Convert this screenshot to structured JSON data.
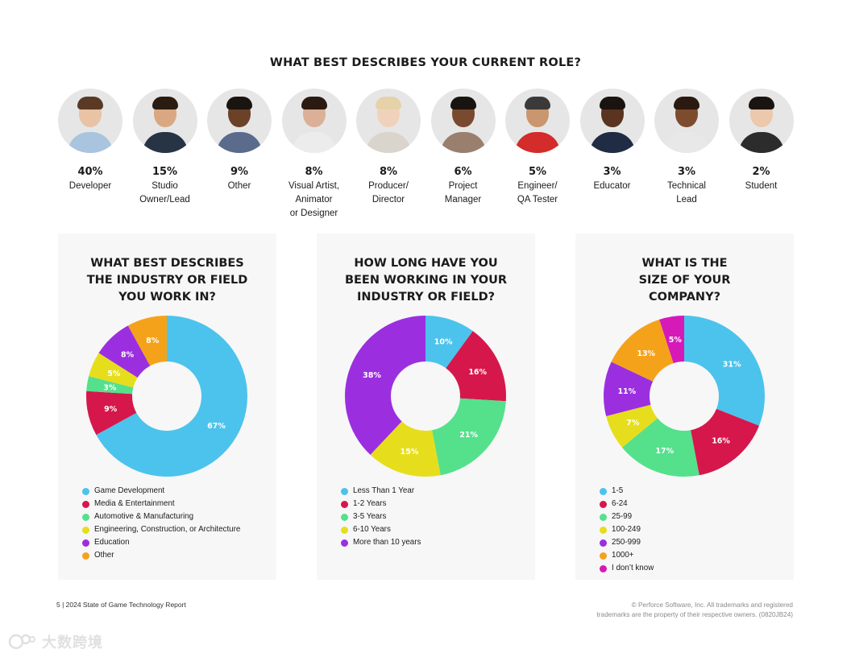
{
  "colors": {
    "blue": "#4cc3ec",
    "red": "#d6174b",
    "green": "#55e08c",
    "yellow": "#e6de1c",
    "purple": "#9b2fe0",
    "orange": "#f5a21b",
    "magenta": "#d51ab8"
  },
  "roles": {
    "title": "WHAT BEST DESCRIBES YOUR CURRENT ROLE?",
    "items": [
      {
        "percent": "40%",
        "label": "Developer"
      },
      {
        "percent": "15%",
        "label": "Studio\nOwner/Lead"
      },
      {
        "percent": "9%",
        "label": "Other"
      },
      {
        "percent": "8%",
        "label": "Visual Artist,\nAnimator\nor Designer"
      },
      {
        "percent": "8%",
        "label": "Producer/\nDirector"
      },
      {
        "percent": "6%",
        "label": "Project\nManager"
      },
      {
        "percent": "5%",
        "label": "Engineer/\nQA Tester"
      },
      {
        "percent": "3%",
        "label": "Educator"
      },
      {
        "percent": "3%",
        "label": "Technical\nLead"
      },
      {
        "percent": "2%",
        "label": "Student"
      }
    ]
  },
  "chart_data": [
    {
      "type": "pie",
      "title": "WHAT BEST DESCRIBES\nTHE INDUSTRY OR FIELD\nYOU WORK IN?",
      "categories": [
        "Game Development",
        "Media & Entertainment",
        "Automotive & Manufacturing",
        "Engineering, Construction, or Architecture",
        "Education",
        "Other"
      ],
      "values": [
        67,
        9,
        3,
        5,
        8,
        8
      ],
      "labels": [
        "67%",
        "9%",
        "3%",
        "5%",
        "8%",
        "8%"
      ],
      "colors": [
        "#4cc3ec",
        "#d6174b",
        "#55e08c",
        "#e6de1c",
        "#9b2fe0",
        "#f5a21b"
      ]
    },
    {
      "type": "pie",
      "title": "HOW LONG HAVE YOU\nBEEN WORKING IN YOUR\nINDUSTRY OR FIELD?",
      "categories": [
        "Less Than 1 Year",
        "1-2 Years",
        "3-5 Years",
        "6-10 Years",
        "More than 10 years"
      ],
      "values": [
        10,
        16,
        21,
        15,
        38
      ],
      "labels": [
        "10%",
        "16%",
        "21%",
        "15%",
        "38%"
      ],
      "colors": [
        "#4cc3ec",
        "#d6174b",
        "#55e08c",
        "#e6de1c",
        "#9b2fe0"
      ]
    },
    {
      "type": "pie",
      "title": "WHAT IS THE\nSIZE OF YOUR\nCOMPANY?",
      "categories": [
        "1-5",
        "6-24",
        "25-99",
        "100-249",
        "250-999",
        "1000+",
        "I don’t know"
      ],
      "values": [
        31,
        16,
        17,
        7,
        11,
        13,
        5
      ],
      "labels": [
        "31%",
        "16%",
        "17%",
        "7%",
        "11%",
        "13%",
        "5%"
      ],
      "colors": [
        "#4cc3ec",
        "#d6174b",
        "#55e08c",
        "#e6de1c",
        "#9b2fe0",
        "#f5a21b",
        "#d51ab8"
      ]
    }
  ],
  "footer": {
    "page": "5  |  2024 State of Game Technology Report",
    "copyright": "© Perforce Software, Inc. All trademarks and registered\ntrademarks are the property of their respective owners. (0820JB24)"
  },
  "watermark": {
    "text": "大数跨境"
  }
}
